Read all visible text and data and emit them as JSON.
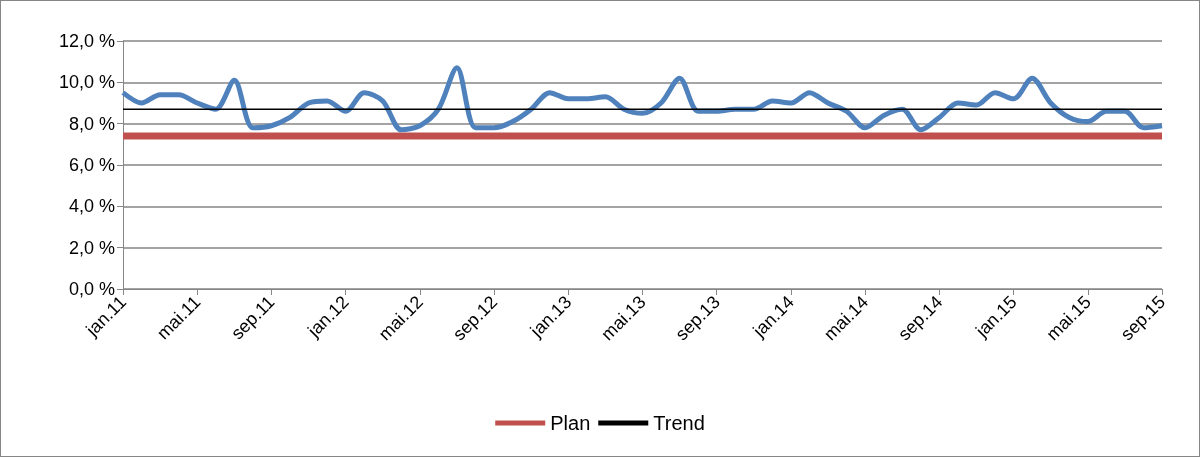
{
  "chart_data": {
    "type": "line",
    "categories": [
      "jan.11",
      null,
      null,
      null,
      "mai.11",
      null,
      null,
      null,
      "sep.11",
      null,
      null,
      null,
      "jan.12",
      null,
      null,
      null,
      "mai.12",
      null,
      null,
      null,
      "sep.12",
      null,
      null,
      null,
      "jan.13",
      null,
      null,
      null,
      "mai.13",
      null,
      null,
      null,
      "sep.13",
      null,
      null,
      null,
      "jan.14",
      null,
      null,
      null,
      "mai.14",
      null,
      null,
      null,
      "sep.14",
      null,
      null,
      null,
      "jan.15",
      null,
      null,
      null,
      "mai.15",
      null,
      null,
      null,
      "sep.15"
    ],
    "series": [
      {
        "name": "Plan",
        "color": "#c0504d",
        "values": [
          7.4,
          7.4,
          7.4,
          7.4,
          7.4,
          7.4,
          7.4,
          7.4,
          7.4,
          7.4,
          7.4,
          7.4,
          7.4,
          7.4,
          7.4,
          7.4,
          7.4,
          7.4,
          7.4,
          7.4,
          7.4,
          7.4,
          7.4,
          7.4,
          7.4,
          7.4,
          7.4,
          7.4,
          7.4,
          7.4,
          7.4,
          7.4,
          7.4,
          7.4,
          7.4,
          7.4,
          7.4,
          7.4,
          7.4,
          7.4,
          7.4,
          7.4,
          7.4,
          7.4,
          7.4,
          7.4,
          7.4,
          7.4,
          7.4,
          7.4,
          7.4,
          7.4,
          7.4,
          7.4,
          7.4,
          7.4,
          7.4
        ]
      },
      {
        "color": "#4f81bd",
        "values": [
          9.5,
          9.0,
          9.4,
          9.4,
          9.0,
          8.7,
          10.1,
          7.8,
          7.9,
          8.3,
          9.0,
          9.1,
          8.6,
          9.5,
          9.1,
          7.7,
          7.9,
          8.7,
          10.7,
          7.8,
          7.8,
          8.1,
          8.7,
          9.5,
          9.2,
          9.2,
          9.3,
          8.7,
          8.5,
          9.0,
          10.2,
          8.6,
          8.6,
          8.7,
          8.7,
          9.1,
          9.0,
          9.5,
          9.0,
          8.6,
          7.8,
          8.4,
          8.7,
          7.7,
          8.3,
          9.0,
          8.9,
          9.5,
          9.2,
          10.2,
          9.0,
          8.3,
          8.1,
          8.6,
          8.6,
          7.8,
          7.9
        ]
      },
      {
        "name": "Trend",
        "color": "#000000",
        "values": [
          8.7,
          8.7,
          8.7,
          8.7,
          8.7,
          8.7,
          8.7,
          8.7,
          8.7,
          8.7,
          8.7,
          8.7,
          8.7,
          8.7,
          8.7,
          8.7,
          8.7,
          8.7,
          8.7,
          8.7,
          8.7,
          8.7,
          8.7,
          8.7,
          8.7,
          8.7,
          8.7,
          8.7,
          8.7,
          8.7,
          8.7,
          8.7,
          8.7,
          8.7,
          8.7,
          8.7,
          8.7,
          8.7,
          8.7,
          8.7,
          8.7,
          8.7,
          8.7,
          8.7,
          8.7,
          8.7,
          8.7,
          8.7,
          8.7,
          8.7,
          8.7,
          8.7,
          8.7,
          8.7,
          8.7,
          8.7,
          8.7
        ]
      }
    ],
    "ylim": [
      0,
      12
    ],
    "yticks": [
      {
        "value": 0,
        "label": "0,0 %"
      },
      {
        "value": 2,
        "label": "2,0 %"
      },
      {
        "value": 4,
        "label": "4,0 %"
      },
      {
        "value": 6,
        "label": "6,0 %"
      },
      {
        "value": 8,
        "label": "8,0 %"
      },
      {
        "value": 10,
        "label": "10,0 %"
      },
      {
        "value": 12,
        "label": "12,0 %"
      }
    ],
    "grid": "y",
    "legend": "bottom",
    "marker": "none",
    "line_style": "solid"
  }
}
